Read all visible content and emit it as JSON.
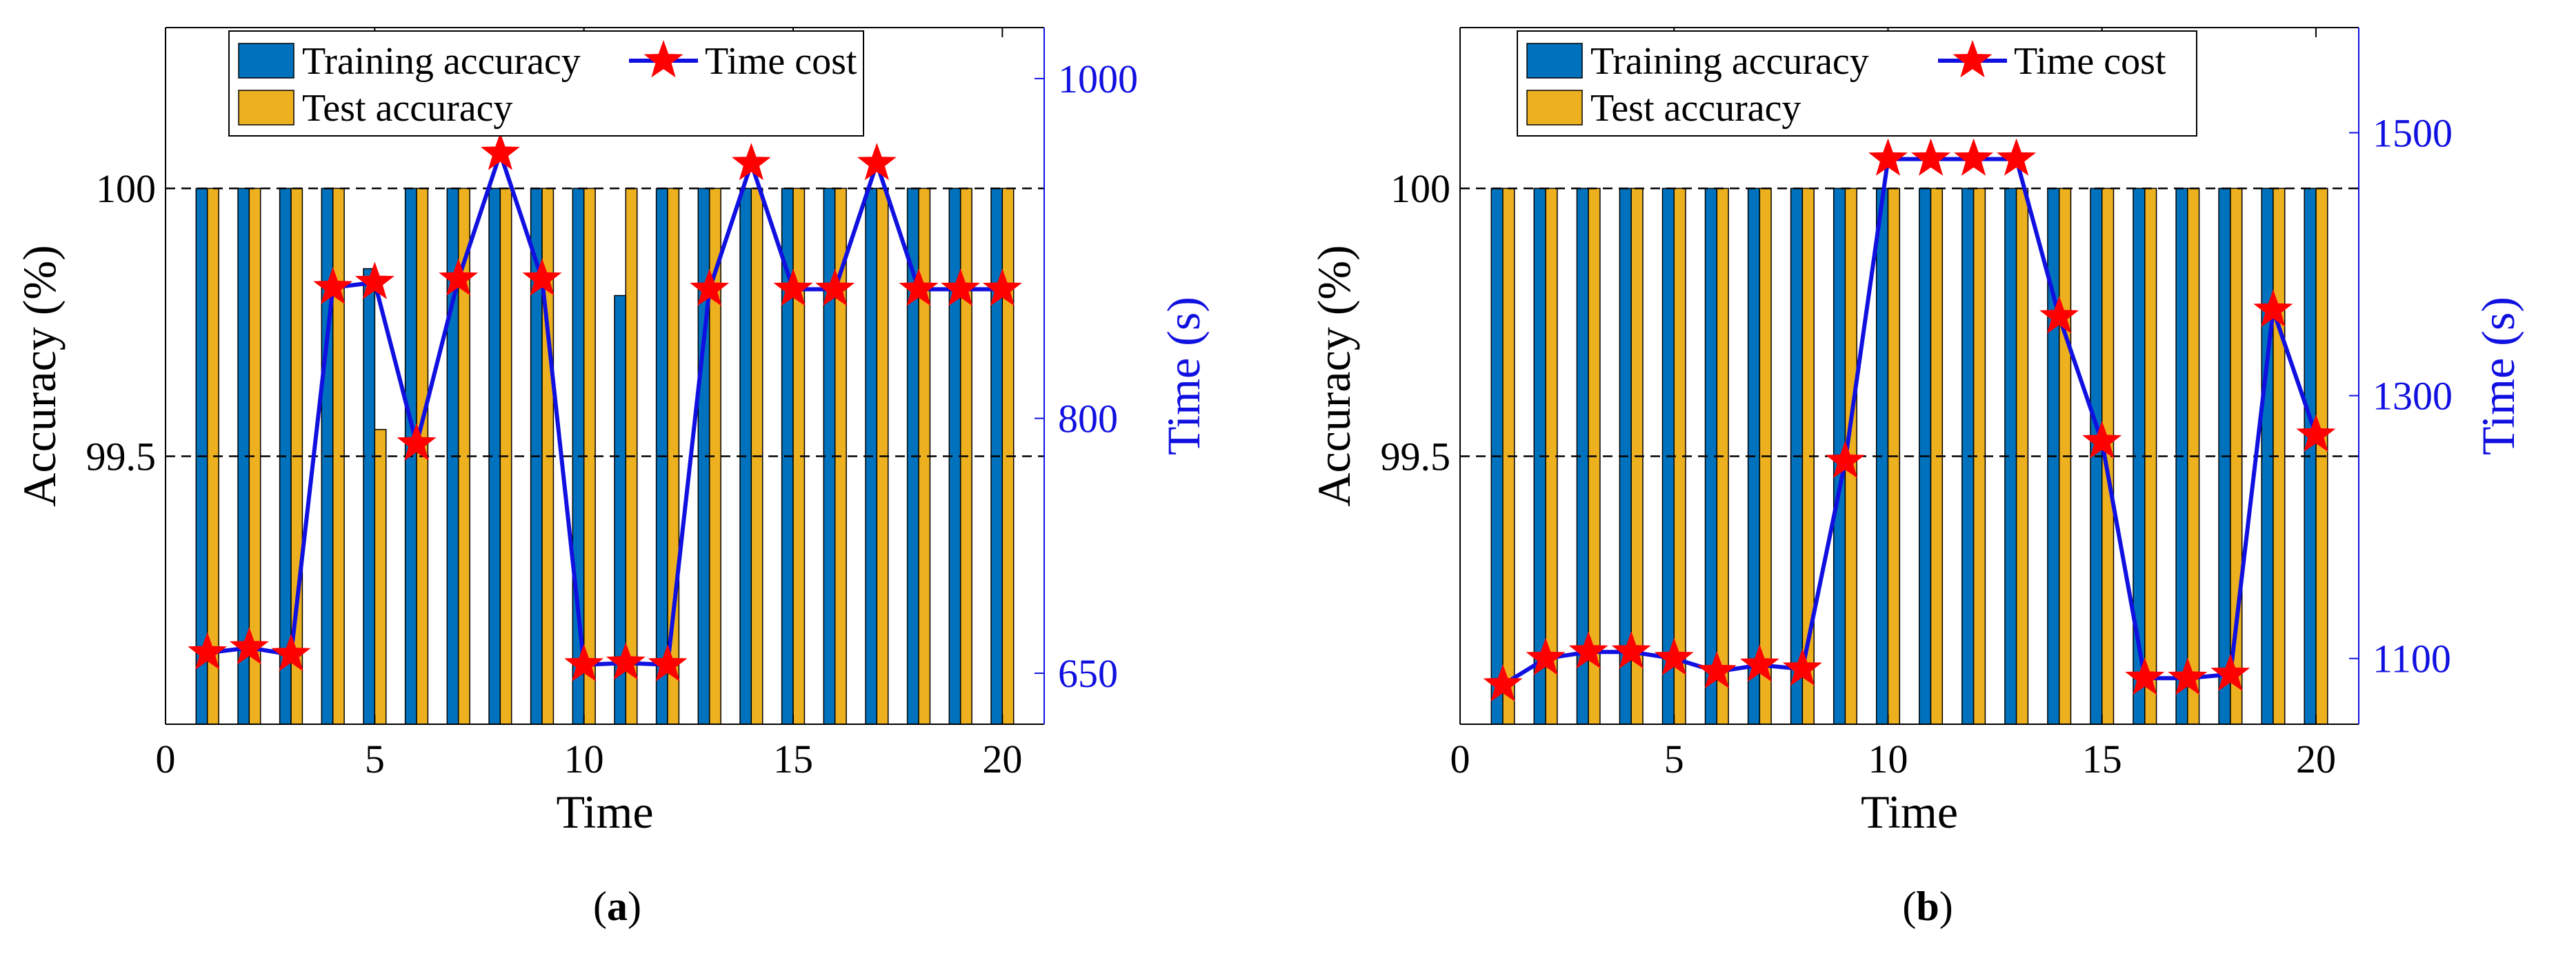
{
  "colors": {
    "training": "#0072BD",
    "test": "#EDB120",
    "line": "#1010E0",
    "star": "#FF0000",
    "right_axis": "#1010E0",
    "axis": "#000000"
  },
  "legend_labels": {
    "training": "Training accuracy",
    "test": "Test accuracy",
    "time": "Time cost"
  },
  "chart_data": [
    {
      "type": "bar+line",
      "id": "a",
      "caption": "a",
      "xlabel": "Time",
      "ylabel_left": "Accuracy (%)",
      "ylabel_right": "Time (s)",
      "xlim": [
        0,
        21
      ],
      "xticks": [
        0,
        5,
        10,
        15,
        20
      ],
      "ylim_left": [
        99.0,
        100.3
      ],
      "yticks_left": [
        99.5,
        100
      ],
      "ylim_right": [
        620,
        1030
      ],
      "yticks_right": [
        650,
        800,
        1000
      ],
      "reference_lines": [
        100,
        99.5
      ],
      "x": [
        1,
        2,
        3,
        4,
        5,
        6,
        7,
        8,
        9,
        10,
        11,
        12,
        13,
        14,
        15,
        16,
        17,
        18,
        19,
        20
      ],
      "series": [
        {
          "name": "Training accuracy",
          "axis": "left",
          "kind": "bar",
          "values": [
            100,
            100,
            100,
            100,
            99.85,
            100,
            100,
            100,
            100,
            100,
            99.8,
            100,
            100,
            100,
            100,
            100,
            100,
            100,
            100,
            100
          ]
        },
        {
          "name": "Test accuracy",
          "axis": "left",
          "kind": "bar",
          "values": [
            100,
            100,
            100,
            100,
            99.55,
            100,
            100,
            100,
            100,
            100,
            100,
            100,
            100,
            100,
            100,
            100,
            100,
            100,
            100,
            100
          ]
        },
        {
          "name": "Time cost",
          "axis": "right",
          "kind": "line",
          "values": [
            662,
            665,
            661,
            877,
            880,
            785,
            882,
            956,
            882,
            655,
            656,
            655,
            876,
            950,
            876,
            876,
            950,
            876,
            876,
            876
          ]
        }
      ]
    },
    {
      "type": "bar+line",
      "id": "b",
      "caption": "b",
      "xlabel": "Time",
      "ylabel_left": "Accuracy (%)",
      "ylabel_right": "Time (s)",
      "xlim": [
        0,
        21
      ],
      "xticks": [
        0,
        5,
        10,
        15,
        20
      ],
      "ylim_left": [
        99.0,
        100.3
      ],
      "yticks_left": [
        99.5,
        100
      ],
      "ylim_right": [
        1050,
        1580
      ],
      "yticks_right": [
        1100,
        1300,
        1500
      ],
      "reference_lines": [
        100,
        99.5
      ],
      "x": [
        1,
        2,
        3,
        4,
        5,
        6,
        7,
        8,
        9,
        10,
        11,
        12,
        13,
        14,
        15,
        16,
        17,
        18,
        19,
        20
      ],
      "series": [
        {
          "name": "Training accuracy",
          "axis": "left",
          "kind": "bar",
          "values": [
            100,
            100,
            100,
            100,
            100,
            100,
            100,
            100,
            100,
            100,
            100,
            100,
            100,
            100,
            100,
            100,
            100,
            100,
            100,
            100
          ]
        },
        {
          "name": "Test accuracy",
          "axis": "left",
          "kind": "bar",
          "values": [
            100,
            100,
            100,
            100,
            100,
            100,
            100,
            100,
            100,
            100,
            100,
            100,
            100,
            100,
            100,
            100,
            100,
            100,
            100,
            100
          ]
        },
        {
          "name": "Time cost",
          "axis": "right",
          "kind": "line",
          "values": [
            1080,
            1100,
            1105,
            1105,
            1100,
            1090,
            1095,
            1092,
            1250,
            1480,
            1480,
            1480,
            1480,
            1360,
            1265,
            1085,
            1085,
            1088,
            1365,
            1270
          ]
        }
      ]
    }
  ]
}
